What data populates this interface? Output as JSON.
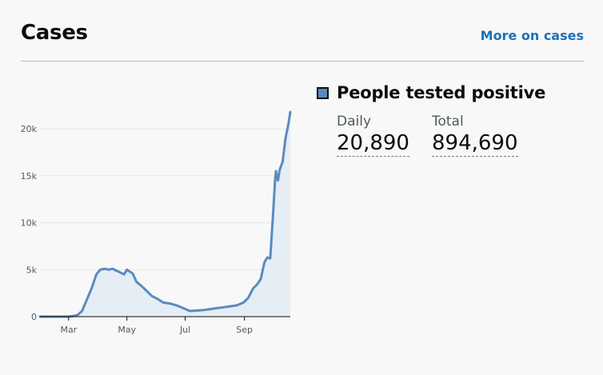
{
  "header": {
    "title": "Cases",
    "more_link": "More on cases"
  },
  "summary": {
    "legend_label": "People tested positive",
    "daily_label": "Daily",
    "daily_value": "20,890",
    "total_label": "Total",
    "total_value": "894,690"
  },
  "colors": {
    "line": "#5a8bbf",
    "area": "#e5edf5",
    "link": "#1d70b8"
  },
  "chart_data": {
    "type": "area",
    "title": "",
    "xlabel": "",
    "ylabel": "",
    "ylim": [
      0,
      23000
    ],
    "yticks": [
      0,
      5000,
      10000,
      15000,
      20000
    ],
    "ytick_labels": [
      "0",
      "5k",
      "10k",
      "15k",
      "20k"
    ],
    "xticks": [
      "Mar",
      "May",
      "Jul",
      "Sep"
    ],
    "grid": true,
    "series": [
      {
        "name": "People tested positive",
        "x": [
          "2020-01-31",
          "2020-02-29",
          "2020-03-05",
          "2020-03-10",
          "2020-03-15",
          "2020-03-20",
          "2020-03-25",
          "2020-03-30",
          "2020-04-03",
          "2020-04-08",
          "2020-04-12",
          "2020-04-16",
          "2020-04-20",
          "2020-04-24",
          "2020-04-28",
          "2020-05-01",
          "2020-05-04",
          "2020-05-07",
          "2020-05-11",
          "2020-05-16",
          "2020-05-21",
          "2020-05-27",
          "2020-06-02",
          "2020-06-08",
          "2020-06-15",
          "2020-06-22",
          "2020-06-29",
          "2020-07-06",
          "2020-07-13",
          "2020-07-20",
          "2020-07-27",
          "2020-08-03",
          "2020-08-10",
          "2020-08-17",
          "2020-08-24",
          "2020-08-31",
          "2020-09-05",
          "2020-09-10",
          "2020-09-14",
          "2020-09-18",
          "2020-09-22",
          "2020-09-25",
          "2020-09-28",
          "2020-10-01",
          "2020-10-03",
          "2020-10-04",
          "2020-10-06",
          "2020-10-08",
          "2020-10-11",
          "2020-10-14",
          "2020-10-17",
          "2020-10-19"
        ],
        "values": [
          0,
          0,
          50,
          150,
          600,
          1800,
          3000,
          4500,
          5000,
          5100,
          5000,
          5100,
          4900,
          4700,
          4500,
          5000,
          4800,
          4600,
          3700,
          3300,
          2800,
          2200,
          1900,
          1500,
          1400,
          1200,
          900,
          600,
          650,
          700,
          800,
          900,
          1000,
          1100,
          1200,
          1500,
          2000,
          3000,
          3400,
          4000,
          5800,
          6300,
          6200,
          11000,
          14500,
          15500,
          14500,
          15700,
          16500,
          19000,
          20500,
          21800
        ]
      }
    ]
  }
}
